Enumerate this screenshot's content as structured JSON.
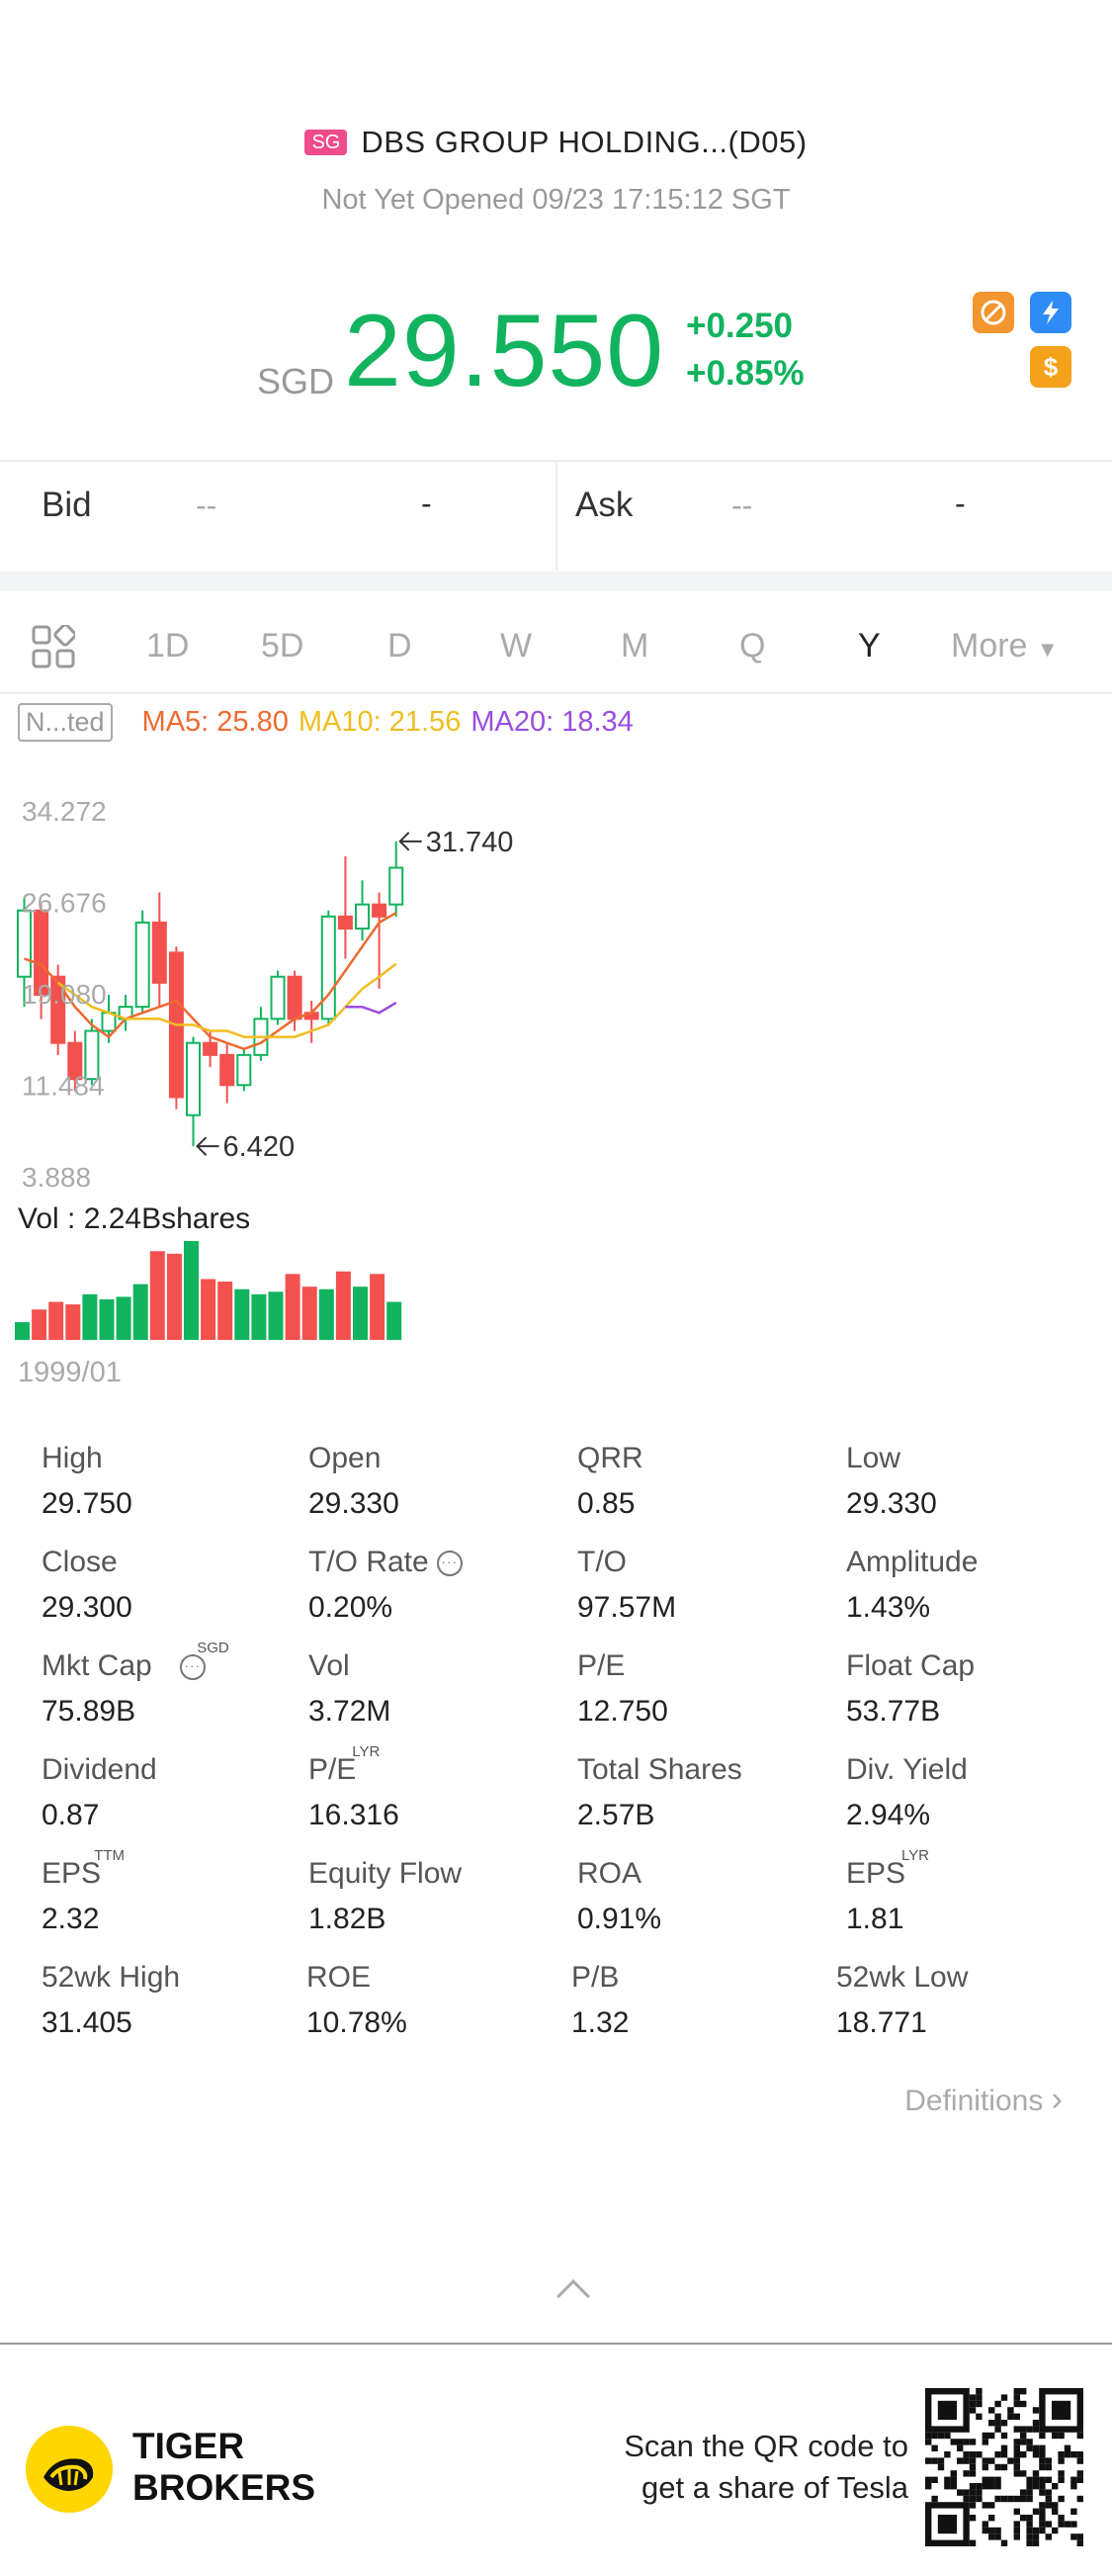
{
  "header": {
    "market_badge": "SG",
    "title": "DBS GROUP HOLDING...(D05)",
    "status": "Not Yet Opened 09/23 17:15:12 SGT"
  },
  "quote": {
    "currency": "SGD",
    "price": "29.550",
    "change": "+0.250",
    "change_pct": "+0.85%",
    "up_color": "#11b35e",
    "icons": [
      "no-short-icon",
      "flash-icon",
      "dollar-icon"
    ]
  },
  "bid_ask": {
    "bid_label": "Bid",
    "bid_price": "--",
    "bid_size": "-",
    "ask_label": "Ask",
    "ask_price": "--",
    "ask_size": "-"
  },
  "tabs": {
    "items": [
      "1D",
      "5D",
      "D",
      "W",
      "M",
      "Q",
      "Y",
      "More"
    ],
    "active": "Y"
  },
  "ma": {
    "adjust": "N...ted",
    "ma5": "MA5: 25.80",
    "ma10": "MA10: 21.56",
    "ma20": "MA20: 18.34"
  },
  "chart_data": {
    "type": "candlestick",
    "y_ticks": [
      "34.272",
      "26.676",
      "19.080",
      "11.484",
      "3.888"
    ],
    "ylim": [
      3.888,
      34.272
    ],
    "high_marker": "31.740",
    "low_marker": "6.420",
    "candles": [
      {
        "o": 20.5,
        "h": 27.0,
        "l": 18.0,
        "c": 26.0
      },
      {
        "o": 26.0,
        "h": 26.5,
        "l": 17.0,
        "c": 19.0
      },
      {
        "o": 20.5,
        "h": 21.5,
        "l": 14.0,
        "c": 15.0
      },
      {
        "o": 15.0,
        "h": 16.0,
        "l": 11.0,
        "c": 12.0
      },
      {
        "o": 12.0,
        "h": 17.0,
        "l": 11.5,
        "c": 16.0
      },
      {
        "o": 16.0,
        "h": 19.0,
        "l": 15.0,
        "c": 17.5
      },
      {
        "o": 17.0,
        "h": 19.0,
        "l": 16.0,
        "c": 18.0
      },
      {
        "o": 18.0,
        "h": 26.0,
        "l": 17.5,
        "c": 25.0
      },
      {
        "o": 25.0,
        "h": 27.5,
        "l": 18.0,
        "c": 20.0
      },
      {
        "o": 22.5,
        "h": 23.0,
        "l": 9.5,
        "c": 10.5
      },
      {
        "o": 9.0,
        "h": 15.5,
        "l": 6.42,
        "c": 15.0
      },
      {
        "o": 15.0,
        "h": 16.0,
        "l": 13.0,
        "c": 14.0
      },
      {
        "o": 14.0,
        "h": 15.0,
        "l": 10.0,
        "c": 11.5
      },
      {
        "o": 11.5,
        "h": 14.5,
        "l": 11.0,
        "c": 14.0
      },
      {
        "o": 14.0,
        "h": 18.0,
        "l": 13.5,
        "c": 17.0
      },
      {
        "o": 17.0,
        "h": 21.0,
        "l": 16.5,
        "c": 20.5
      },
      {
        "o": 20.5,
        "h": 21.0,
        "l": 16.0,
        "c": 17.0
      },
      {
        "o": 17.5,
        "h": 18.5,
        "l": 15.0,
        "c": 17.0
      },
      {
        "o": 17.0,
        "h": 26.0,
        "l": 16.5,
        "c": 25.5
      },
      {
        "o": 25.5,
        "h": 30.5,
        "l": 22.0,
        "c": 24.5
      },
      {
        "o": 24.5,
        "h": 28.5,
        "l": 23.5,
        "c": 26.5
      },
      {
        "o": 26.5,
        "h": 27.5,
        "l": 19.5,
        "c": 25.5
      },
      {
        "o": 26.5,
        "h": 31.74,
        "l": 25.5,
        "c": 29.55
      }
    ],
    "ma5_line": [
      22,
      21.5,
      20,
      18,
      16.5,
      15.5,
      17,
      17.5,
      18,
      18.5,
      17,
      15.5,
      15,
      14.5,
      15,
      16,
      17,
      17.5,
      19,
      21,
      23,
      25,
      25.8
    ],
    "ma10_line": [
      null,
      null,
      20,
      19,
      18,
      17.5,
      17,
      17,
      17,
      16.5,
      16.5,
      16,
      16,
      15.5,
      15.5,
      15.5,
      15.5,
      16,
      16.5,
      18,
      19.5,
      20.5,
      21.56
    ],
    "ma20_line": [
      null,
      null,
      null,
      null,
      null,
      null,
      null,
      null,
      null,
      null,
      null,
      null,
      null,
      null,
      null,
      null,
      null,
      null,
      null,
      18.0,
      18.0,
      17.5,
      18.34
    ],
    "volume_label": "Vol  : 2.24Bshares",
    "volumes": [
      0.35,
      0.6,
      0.75,
      0.7,
      0.9,
      0.8,
      0.85,
      1.1,
      1.75,
      1.7,
      1.95,
      1.2,
      1.15,
      1.0,
      0.9,
      0.95,
      1.3,
      1.05,
      1.0,
      1.35,
      1.05,
      1.3,
      0.75
    ],
    "start_date": "1999/01"
  },
  "stats": [
    {
      "k": "High",
      "v": "29.750"
    },
    {
      "k": "Open",
      "v": "29.330"
    },
    {
      "k": "QRR",
      "v": "0.85"
    },
    {
      "k": "Low",
      "v": "29.330"
    },
    {
      "k": "Close",
      "v": "29.300"
    },
    {
      "k": "T/O Rate",
      "v": "0.20%",
      "info": true
    },
    {
      "k": "T/O",
      "v": "97.57M"
    },
    {
      "k": "Amplitude",
      "v": "1.43%"
    },
    {
      "k": "Mkt Cap",
      "v": "75.89B",
      "sup": "SGD",
      "info": true
    },
    {
      "k": "Vol",
      "v": "3.72M"
    },
    {
      "k": "P/E",
      "v": "12.750"
    },
    {
      "k": "Float Cap",
      "v": "53.77B"
    },
    {
      "k": "Dividend",
      "v": "0.87"
    },
    {
      "k": "P/E",
      "v": "16.316",
      "sup": "LYR"
    },
    {
      "k": "Total Shares",
      "v": "2.57B"
    },
    {
      "k": "Div. Yield",
      "v": "2.94%"
    },
    {
      "k": "EPS",
      "v": "2.32",
      "sup": "TTM"
    },
    {
      "k": "Equity Flow",
      "v": "1.82B"
    },
    {
      "k": "ROA",
      "v": "0.91%"
    },
    {
      "k": "EPS",
      "v": "1.81",
      "sup": "LYR"
    },
    {
      "k": "52wk High",
      "v": "31.405"
    },
    {
      "k": "ROE",
      "v": "10.78%"
    },
    {
      "k": "P/B",
      "v": "1.32"
    },
    {
      "k": "52wk Low",
      "v": "18.771"
    }
  ],
  "definitions_label": "Definitions",
  "footer": {
    "brand_line1": "TIGER",
    "brand_line2": "BROKERS",
    "scan_line1": "Scan the QR code to",
    "scan_line2": "get a share of Tesla"
  },
  "colors": {
    "up": "#11b35e",
    "down": "#f2514e",
    "ma5": "#ee6a2f",
    "ma10": "#f0bd20",
    "ma20": "#9a4de0"
  }
}
